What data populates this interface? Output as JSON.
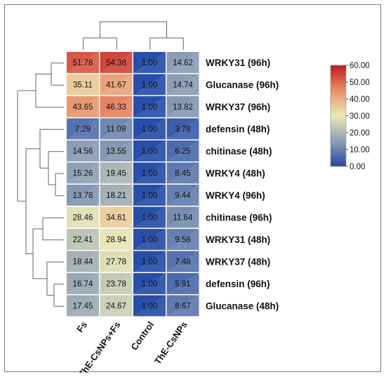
{
  "chart_data": {
    "type": "heatmap",
    "columns": [
      "Fs",
      "ThE-CsNPs+Fs",
      "Control",
      "ThE-CsNPs"
    ],
    "rows": [
      "WRKY31 (96h)",
      "Glucanase (96h)",
      "WRKY37 (96h)",
      "defensin (48h)",
      "chitinase (48h)",
      "WRKY4 (48h)",
      "WRKY4 (96h)",
      "chitinase (96h)",
      "WRKY31 (48h)",
      "WRKY37 (48h)",
      "defensin (96h)",
      "Glucanase (48h)"
    ],
    "values": [
      [
        51.78,
        54.38,
        1.0,
        14.62
      ],
      [
        35.11,
        41.67,
        1.0,
        14.74
      ],
      [
        43.65,
        46.33,
        1.0,
        13.82
      ],
      [
        7.29,
        11.09,
        1.0,
        3.78
      ],
      [
        14.56,
        13.55,
        1.0,
        6.25
      ],
      [
        15.26,
        19.45,
        1.0,
        8.45
      ],
      [
        13.78,
        18.21,
        1.0,
        9.44
      ],
      [
        28.46,
        34.61,
        1.0,
        11.64
      ],
      [
        22.41,
        28.94,
        1.0,
        9.56
      ],
      [
        18.44,
        27.78,
        1.0,
        7.48
      ],
      [
        16.74,
        23.78,
        1.0,
        5.91
      ],
      [
        17.45,
        24.67,
        1.0,
        8.67
      ]
    ],
    "value_labels": [
      [
        "51.78",
        "54.38",
        "1.00",
        "14.62"
      ],
      [
        "35.11",
        "41.67",
        "1.00",
        "14.74"
      ],
      [
        "43.65",
        "46.33",
        "1.00",
        "13.82"
      ],
      [
        "7.29",
        "11.09",
        "1.00",
        "3.78"
      ],
      [
        "14.56",
        "13.55",
        "1.00",
        "6.25"
      ],
      [
        "15.26",
        "19.45",
        "1.00",
        "8.45"
      ],
      [
        "13.78",
        "18.21",
        "1.00",
        "9.44"
      ],
      [
        "28.46",
        "34.61",
        "1.00",
        "11.64"
      ],
      [
        "22.41",
        "28.94",
        "1.00",
        "9.56"
      ],
      [
        "18.44",
        "27.78",
        "1.00",
        "7.48"
      ],
      [
        "16.74",
        "23.78",
        "1.00",
        "5.91"
      ],
      [
        "17.45",
        "24.67",
        "1.00",
        "8.67"
      ]
    ],
    "color_scale": {
      "min": 0,
      "max": 60,
      "ticks": [
        "60.00",
        "50.00",
        "40.00",
        "30.00",
        "20.00",
        "10.00",
        "0.00"
      ],
      "colors": [
        "#2148a8",
        "#8e9fb4",
        "#ece9b6",
        "#e9906a",
        "#c0191f"
      ]
    },
    "column_tree": "((Fs, ThE-CsNPs+Fs), (Control, ThE-CsNPs))",
    "row_tree": "(((WRKY31 (96h), Glucanase (96h)), WRKY37 (96h)), ((defensin (48h), (chitinase (48h), (WRKY4 (48h), WRKY4 (96h)))), ((chitinase (96h), WRKY31 (48h)), (WRKY37 (48h), (defensin (96h), Glucanase (48h))))))",
    "legend_position": "right"
  }
}
